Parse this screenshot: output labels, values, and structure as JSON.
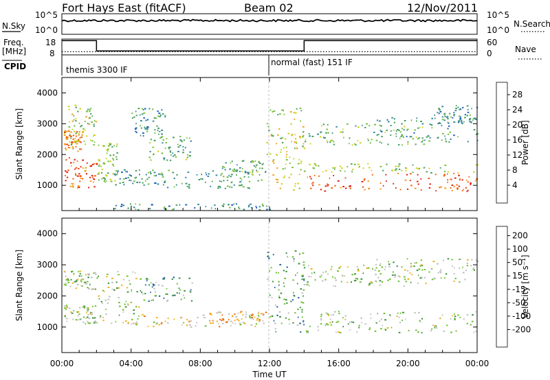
{
  "header": {
    "station": "Fort Hays East (fitACF)",
    "beam": "Beam 02",
    "date": "12/Nov/2011"
  },
  "summary": {
    "noise_left_label": "N.Sky",
    "noise_right_label": "N.Search",
    "noise_left_ticks": [
      "10^5",
      "10^0"
    ],
    "noise_right_ticks": [
      "10^5",
      "10^0"
    ],
    "freq_label_top": "Freq.",
    "freq_label_unit": "[MHz]",
    "freq_ticks": [
      "18",
      "8"
    ],
    "nave_label": "Nave",
    "nave_ticks": [
      "60",
      "0"
    ],
    "cpid_label": "CPID",
    "cpid_segments": [
      {
        "name": "themis 3300 IF",
        "start_h": 0,
        "end_h": 12
      },
      {
        "name": "normal (fast) 151 IF",
        "start_h": 12,
        "end_h": 24
      }
    ],
    "freq_steps": [
      {
        "start_h": 0,
        "end_h": 2,
        "freq_mhz": 17
      },
      {
        "start_h": 2,
        "end_h": 14,
        "freq_mhz": 10.5
      },
      {
        "start_h": 14,
        "end_h": 24,
        "freq_mhz": 17
      }
    ],
    "nave_steps": [
      {
        "start_h": 0,
        "end_h": 2,
        "nave": 12
      },
      {
        "start_h": 2,
        "end_h": 14,
        "nave": 12
      },
      {
        "start_h": 14,
        "end_h": 24,
        "nave": 12
      }
    ]
  },
  "chart_data": [
    {
      "type": "heatmap",
      "name": "power",
      "xlabel": "Time UT",
      "ylabel": "Slant Range [km]",
      "x_ticks": [
        "00:00",
        "04:00",
        "08:00",
        "12:00",
        "16:00",
        "20:00",
        "00:00"
      ],
      "y_ticks": [
        1000,
        2000,
        3000,
        4000
      ],
      "xlim_hours": [
        0,
        24
      ],
      "ylim_km": [
        180,
        4500
      ],
      "colorbar": {
        "label": "Power [dB]",
        "ticks": [
          "4",
          "8",
          "12",
          "16",
          "20",
          "24",
          "28"
        ],
        "colors": [
          "#1030e0",
          "#2060c0",
          "#3a8a9a",
          "#48a060",
          "#78c040",
          "#d0d020",
          "#f0a020",
          "#f06010",
          "#e02010"
        ]
      },
      "regions": [
        {
          "t": [
            0.1,
            2.0
          ],
          "r": [
            900,
            1900
          ],
          "level": 0.9
        },
        {
          "t": [
            0.1,
            1.2
          ],
          "r": [
            2100,
            2800
          ],
          "level": 0.8
        },
        {
          "t": [
            0.3,
            2.0
          ],
          "r": [
            2300,
            3600
          ],
          "level": 0.55
        },
        {
          "t": [
            2.0,
            3.2
          ],
          "r": [
            1100,
            2400
          ],
          "level": 0.5
        },
        {
          "t": [
            3.0,
            6.0
          ],
          "r": [
            1000,
            1500
          ],
          "level": 0.35
        },
        {
          "t": [
            4.0,
            6.0
          ],
          "r": [
            2600,
            3500
          ],
          "level": 0.3
        },
        {
          "t": [
            5.0,
            7.5
          ],
          "r": [
            1800,
            2600
          ],
          "level": 0.4
        },
        {
          "t": [
            6.0,
            11.0
          ],
          "r": [
            900,
            1500
          ],
          "level": 0.35
        },
        {
          "t": [
            3.0,
            12.0
          ],
          "r": [
            200,
            400
          ],
          "level": 0.3
        },
        {
          "t": [
            9.0,
            11.8
          ],
          "r": [
            1100,
            1800
          ],
          "level": 0.4
        },
        {
          "t": [
            11.8,
            14.0
          ],
          "r": [
            800,
            3500
          ],
          "level": 0.6
        },
        {
          "t": [
            14.0,
            24.0
          ],
          "r": [
            800,
            1400
          ],
          "level": 0.92
        },
        {
          "t": [
            14.0,
            24.0
          ],
          "r": [
            1400,
            1700
          ],
          "level": 0.5
        },
        {
          "t": [
            14.0,
            21.0
          ],
          "r": [
            2300,
            3000
          ],
          "level": 0.45
        },
        {
          "t": [
            18.0,
            24.0
          ],
          "r": [
            2400,
            3200
          ],
          "level": 0.35
        },
        {
          "t": [
            21.5,
            24.0
          ],
          "r": [
            3000,
            3600
          ],
          "level": 0.3
        }
      ]
    },
    {
      "type": "heatmap",
      "name": "velocity",
      "xlabel": "Time UT",
      "ylabel": "Slant Range [km]",
      "x_ticks": [
        "00:00",
        "04:00",
        "08:00",
        "12:00",
        "16:00",
        "20:00",
        "00:00"
      ],
      "y_ticks": [
        1000,
        2000,
        3000,
        4000
      ],
      "xlim_hours": [
        0,
        24
      ],
      "ylim_km": [
        180,
        4500
      ],
      "colorbar": {
        "label": "Velocity [m s⁻¹]",
        "ticks": [
          "200",
          "100",
          "50",
          "15",
          "-15",
          "-50",
          "-100",
          "-200"
        ],
        "colors": [
          "#1030c0",
          "#2060a0",
          "#3a9040",
          "#70c030",
          "#c0c0c0",
          "#f0b020",
          "#f07010",
          "#e02010"
        ]
      },
      "regions": [
        {
          "t": [
            0.1,
            2.0
          ],
          "r": [
            1100,
            1700
          ],
          "level": 0.5
        },
        {
          "t": [
            0.1,
            2.0
          ],
          "r": [
            2200,
            2800
          ],
          "level": 0.5
        },
        {
          "t": [
            2.0,
            4.5
          ],
          "r": [
            1100,
            2800
          ],
          "level": 0.5
        },
        {
          "t": [
            4.5,
            7.5
          ],
          "r": [
            1800,
            2600
          ],
          "level": 0.35
        },
        {
          "t": [
            3.5,
            11.5
          ],
          "r": [
            1000,
            1400
          ],
          "level": 0.6
        },
        {
          "t": [
            8.5,
            11.8
          ],
          "r": [
            1100,
            1500
          ],
          "level": 0.7
        },
        {
          "t": [
            11.8,
            14.0
          ],
          "r": [
            800,
            3500
          ],
          "level": 0.35
        },
        {
          "t": [
            14.0,
            24.0
          ],
          "r": [
            800,
            1500
          ],
          "level": 0.5
        },
        {
          "t": [
            14.0,
            21.0
          ],
          "r": [
            2300,
            3000
          ],
          "level": 0.5
        },
        {
          "t": [
            18.0,
            24.0
          ],
          "r": [
            2400,
            3200
          ],
          "level": 0.5
        }
      ]
    }
  ]
}
